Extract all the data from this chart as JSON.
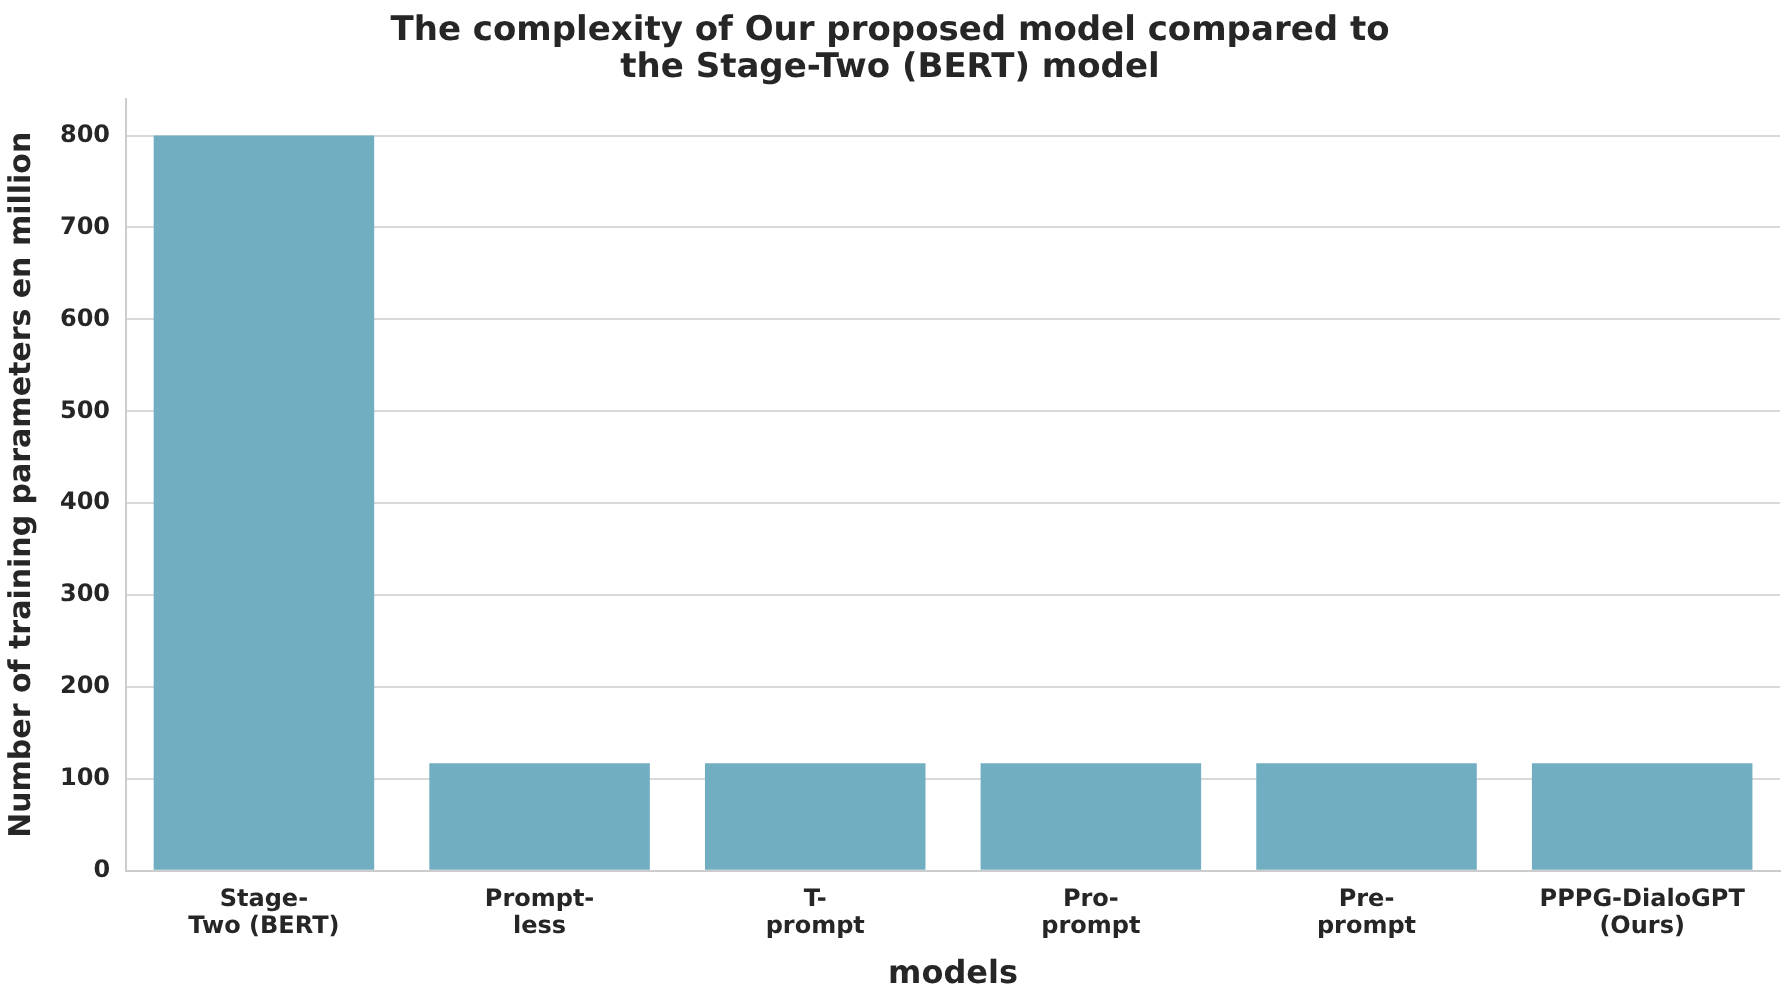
{
  "chart_data": {
    "type": "bar",
    "title": "The complexity of Our proposed model compared to\nthe Stage-Two (BERT) model",
    "xlabel": "models",
    "ylabel": "Number of training parameters en million",
    "categories": [
      "Stage-\nTwo (BERT)",
      "Prompt-\nless",
      "T-\nprompt",
      "Pro-\nprompt",
      "Pre-\nprompt",
      "PPPG-DialoGPT\n(Ours)"
    ],
    "values": [
      800,
      117,
      117,
      117,
      117,
      117
    ],
    "color": "#72aec2",
    "ylim": [
      0,
      840
    ],
    "yticks": [
      0,
      100,
      200,
      300,
      400,
      500,
      600,
      700,
      800
    ],
    "grid": "y",
    "legend": false
  }
}
